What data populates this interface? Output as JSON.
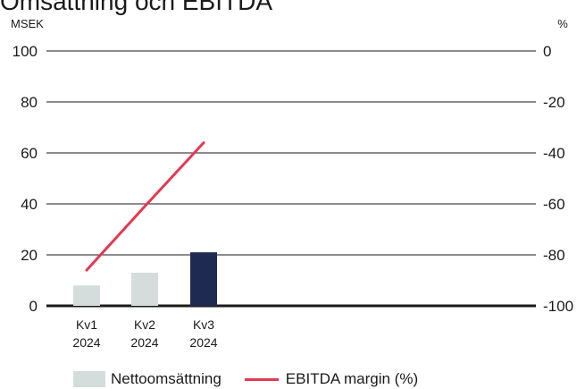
{
  "title": "Omsättning och EBITDA",
  "chart_data": {
    "type": "bar",
    "categories": [
      {
        "line1": "Kv1",
        "line2": "2024"
      },
      {
        "line1": "Kv2",
        "line2": "2024"
      },
      {
        "line1": "Kv3",
        "line2": "2024"
      }
    ],
    "left_axis": {
      "unit": "MSEK",
      "ticks": [
        0,
        20,
        40,
        60,
        80,
        100
      ],
      "ylim": [
        0,
        100
      ]
    },
    "right_axis": {
      "unit": "%",
      "ticks": [
        0,
        -20,
        -40,
        -60,
        -80,
        -100
      ],
      "ylim": [
        -100,
        0
      ]
    },
    "series": [
      {
        "name": "Nettoomsättning",
        "kind": "bar",
        "axis": "left",
        "values": [
          8,
          13,
          21
        ],
        "colors": [
          "#d5dcdc",
          "#d5dcdc",
          "#1e2a52"
        ]
      },
      {
        "name": "EBITDA margin (%)",
        "kind": "line",
        "axis": "right",
        "values": [
          -86,
          -61,
          -36
        ],
        "color": "#e03a52"
      }
    ],
    "grid": true,
    "legend_position": "bottom"
  }
}
